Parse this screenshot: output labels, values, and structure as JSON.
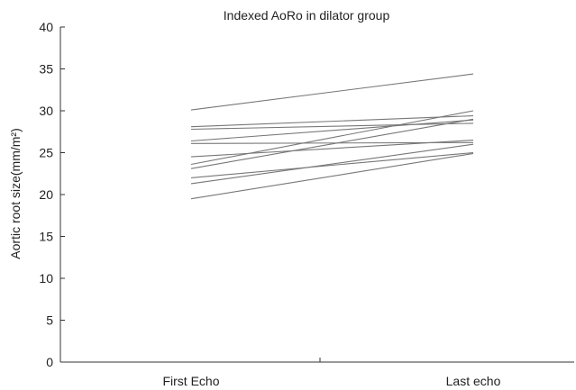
{
  "chart_data": {
    "type": "line",
    "title": "Indexed AoRo in dilator  group",
    "xlabel": "",
    "ylabel": "Aortic root size(mm/m²)",
    "categories": [
      "First Echo",
      "Last echo"
    ],
    "ylim": [
      0,
      40
    ],
    "yticks": [
      0,
      5,
      10,
      15,
      20,
      25,
      30,
      35,
      40
    ],
    "grid": false,
    "legend": "none",
    "series": [
      {
        "values": [
          30.1,
          34.4
        ]
      },
      {
        "values": [
          28.1,
          29.4
        ]
      },
      {
        "values": [
          27.8,
          28.5
        ]
      },
      {
        "values": [
          26.4,
          28.9
        ]
      },
      {
        "values": [
          26.1,
          26.2
        ]
      },
      {
        "values": [
          24.5,
          26.5
        ]
      },
      {
        "values": [
          23.6,
          30.0
        ]
      },
      {
        "values": [
          23.1,
          29.0
        ]
      },
      {
        "values": [
          22.0,
          25.0
        ]
      },
      {
        "values": [
          21.3,
          26.0
        ]
      },
      {
        "values": [
          19.5,
          24.9
        ]
      }
    ],
    "colors": {
      "lines": "#777777",
      "axes": "#333333"
    }
  }
}
